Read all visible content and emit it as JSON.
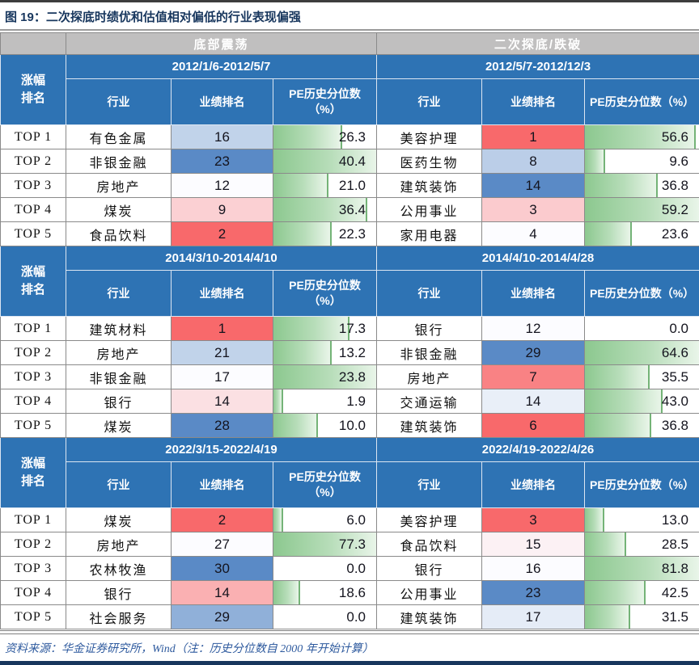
{
  "title": "图 19：二次探底时绩优和估值相对偏低的行业表现偏强",
  "source_note": "资料来源：华金证券研究所，Wind（注：历史分位数自 2000 年开始计算）",
  "colors": {
    "header_blue": "#2e73b4",
    "group_gray": "#c0bfbf",
    "scale_low_red": "#F8696B",
    "scale_mid_white": "#FCFCFF",
    "scale_high_blue": "#5A8AC6",
    "pe_bar_green": "#8cc88f",
    "title_navy": "#17365d",
    "source_blue": "#2e5a9e"
  },
  "table": {
    "group_headers": [
      "底部震荡",
      "二次探底/跌破"
    ],
    "row_header": "涨幅\n排名",
    "col_headers": [
      "行业",
      "业绩排名",
      "PE历史分位数（%）"
    ],
    "top_labels": [
      "TOP 1",
      "TOP 2",
      "TOP 3",
      "TOP 4",
      "TOP 5"
    ],
    "blocks": [
      {
        "left": {
          "period": "2012/1/6-2012/5/7",
          "rows": [
            {
              "industry": "有色金属",
              "rank": 16,
              "pe": "26.3"
            },
            {
              "industry": "非银金融",
              "rank": 23,
              "pe": "40.4"
            },
            {
              "industry": "房地产",
              "rank": 12,
              "pe": "21.0"
            },
            {
              "industry": "煤炭",
              "rank": 9,
              "pe": "36.4"
            },
            {
              "industry": "食品饮料",
              "rank": 2,
              "pe": "22.3"
            }
          ]
        },
        "right": {
          "period": "2012/5/7-2012/12/3",
          "rows": [
            {
              "industry": "美容护理",
              "rank": 1,
              "pe": "56.6"
            },
            {
              "industry": "医药生物",
              "rank": 8,
              "pe": "9.6"
            },
            {
              "industry": "建筑装饰",
              "rank": 14,
              "pe": "36.8"
            },
            {
              "industry": "公用事业",
              "rank": 3,
              "pe": "59.2"
            },
            {
              "industry": "家用电器",
              "rank": 4,
              "pe": "23.6"
            }
          ]
        }
      },
      {
        "left": {
          "period": "2014/3/10-2014/4/10",
          "rows": [
            {
              "industry": "建筑材料",
              "rank": 1,
              "pe": "17.3"
            },
            {
              "industry": "房地产",
              "rank": 21,
              "pe": "13.2"
            },
            {
              "industry": "非银金融",
              "rank": 17,
              "pe": "23.8"
            },
            {
              "industry": "银行",
              "rank": 14,
              "pe": "1.9"
            },
            {
              "industry": "煤炭",
              "rank": 28,
              "pe": "10.0"
            }
          ]
        },
        "right": {
          "period": "2014/4/10-2014/4/28",
          "rows": [
            {
              "industry": "银行",
              "rank": 12,
              "pe": "0.0"
            },
            {
              "industry": "非银金融",
              "rank": 29,
              "pe": "64.6"
            },
            {
              "industry": "房地产",
              "rank": 7,
              "pe": "35.5"
            },
            {
              "industry": "交通运输",
              "rank": 14,
              "pe": "43.0"
            },
            {
              "industry": "建筑装饰",
              "rank": 6,
              "pe": "36.8"
            }
          ]
        }
      },
      {
        "left": {
          "period": "2022/3/15-2022/4/19",
          "rows": [
            {
              "industry": "煤炭",
              "rank": 2,
              "pe": "6.0"
            },
            {
              "industry": "房地产",
              "rank": 27,
              "pe": "77.3"
            },
            {
              "industry": "农林牧渔",
              "rank": 30,
              "pe": "0.0"
            },
            {
              "industry": "银行",
              "rank": 14,
              "pe": "18.6"
            },
            {
              "industry": "社会服务",
              "rank": 29,
              "pe": "0.0"
            }
          ]
        },
        "right": {
          "period": "2022/4/19-2022/4/26",
          "rows": [
            {
              "industry": "美容护理",
              "rank": 3,
              "pe": "13.0"
            },
            {
              "industry": "食品饮料",
              "rank": 15,
              "pe": "28.5"
            },
            {
              "industry": "银行",
              "rank": 16,
              "pe": "81.8"
            },
            {
              "industry": "公用事业",
              "rank": 23,
              "pe": "42.5"
            },
            {
              "industry": "建筑装饰",
              "rank": 17,
              "pe": "31.5"
            }
          ]
        }
      }
    ]
  }
}
